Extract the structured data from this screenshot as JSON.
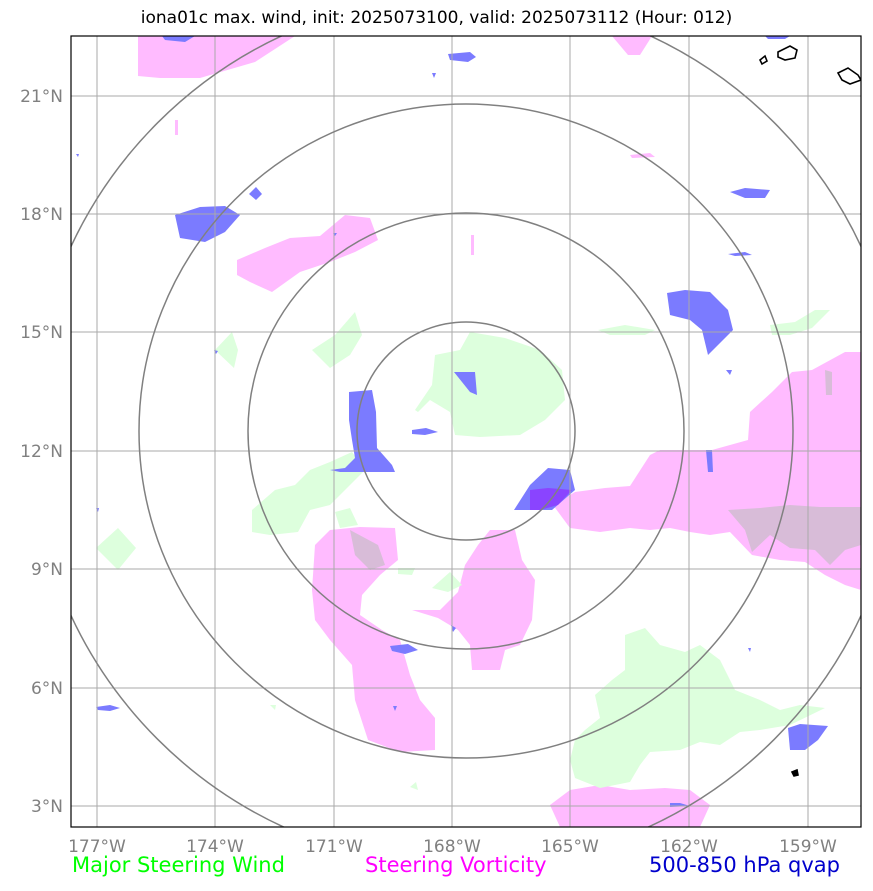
{
  "title": "iona01c max. wind, init: 2025073100, valid: 2025073112 (Hour: 012)",
  "map": {
    "lon_range": [
      -177.6,
      -157.4
    ],
    "lat_range": [
      2.5,
      22.5
    ],
    "center": {
      "lat": 12.5,
      "lon": -167.75
    },
    "range_ring_count": 4,
    "lon_ticks": [
      "177°W",
      "174°W",
      "171°W",
      "168°W",
      "165°W",
      "162°W",
      "159°W"
    ],
    "lat_ticks": [
      "3°N",
      "6°N",
      "9°N",
      "12°N",
      "15°N",
      "18°N",
      "21°N"
    ]
  },
  "legend": {
    "wind": "Major Steering Wind",
    "vorticity": "Steering Vorticity",
    "qvap": "500-850 hPa qvap"
  },
  "colors": {
    "wind": "#00ff00",
    "wind_fill": "#ddffdd",
    "vorticity": "#ff00ff",
    "vorticity_fill": "#ffbbff",
    "qvap": "#0000cc",
    "qvap_fill": "#7b7bff",
    "grid": "#aaaaaa",
    "rings": "#808080",
    "coast": "#000000"
  }
}
